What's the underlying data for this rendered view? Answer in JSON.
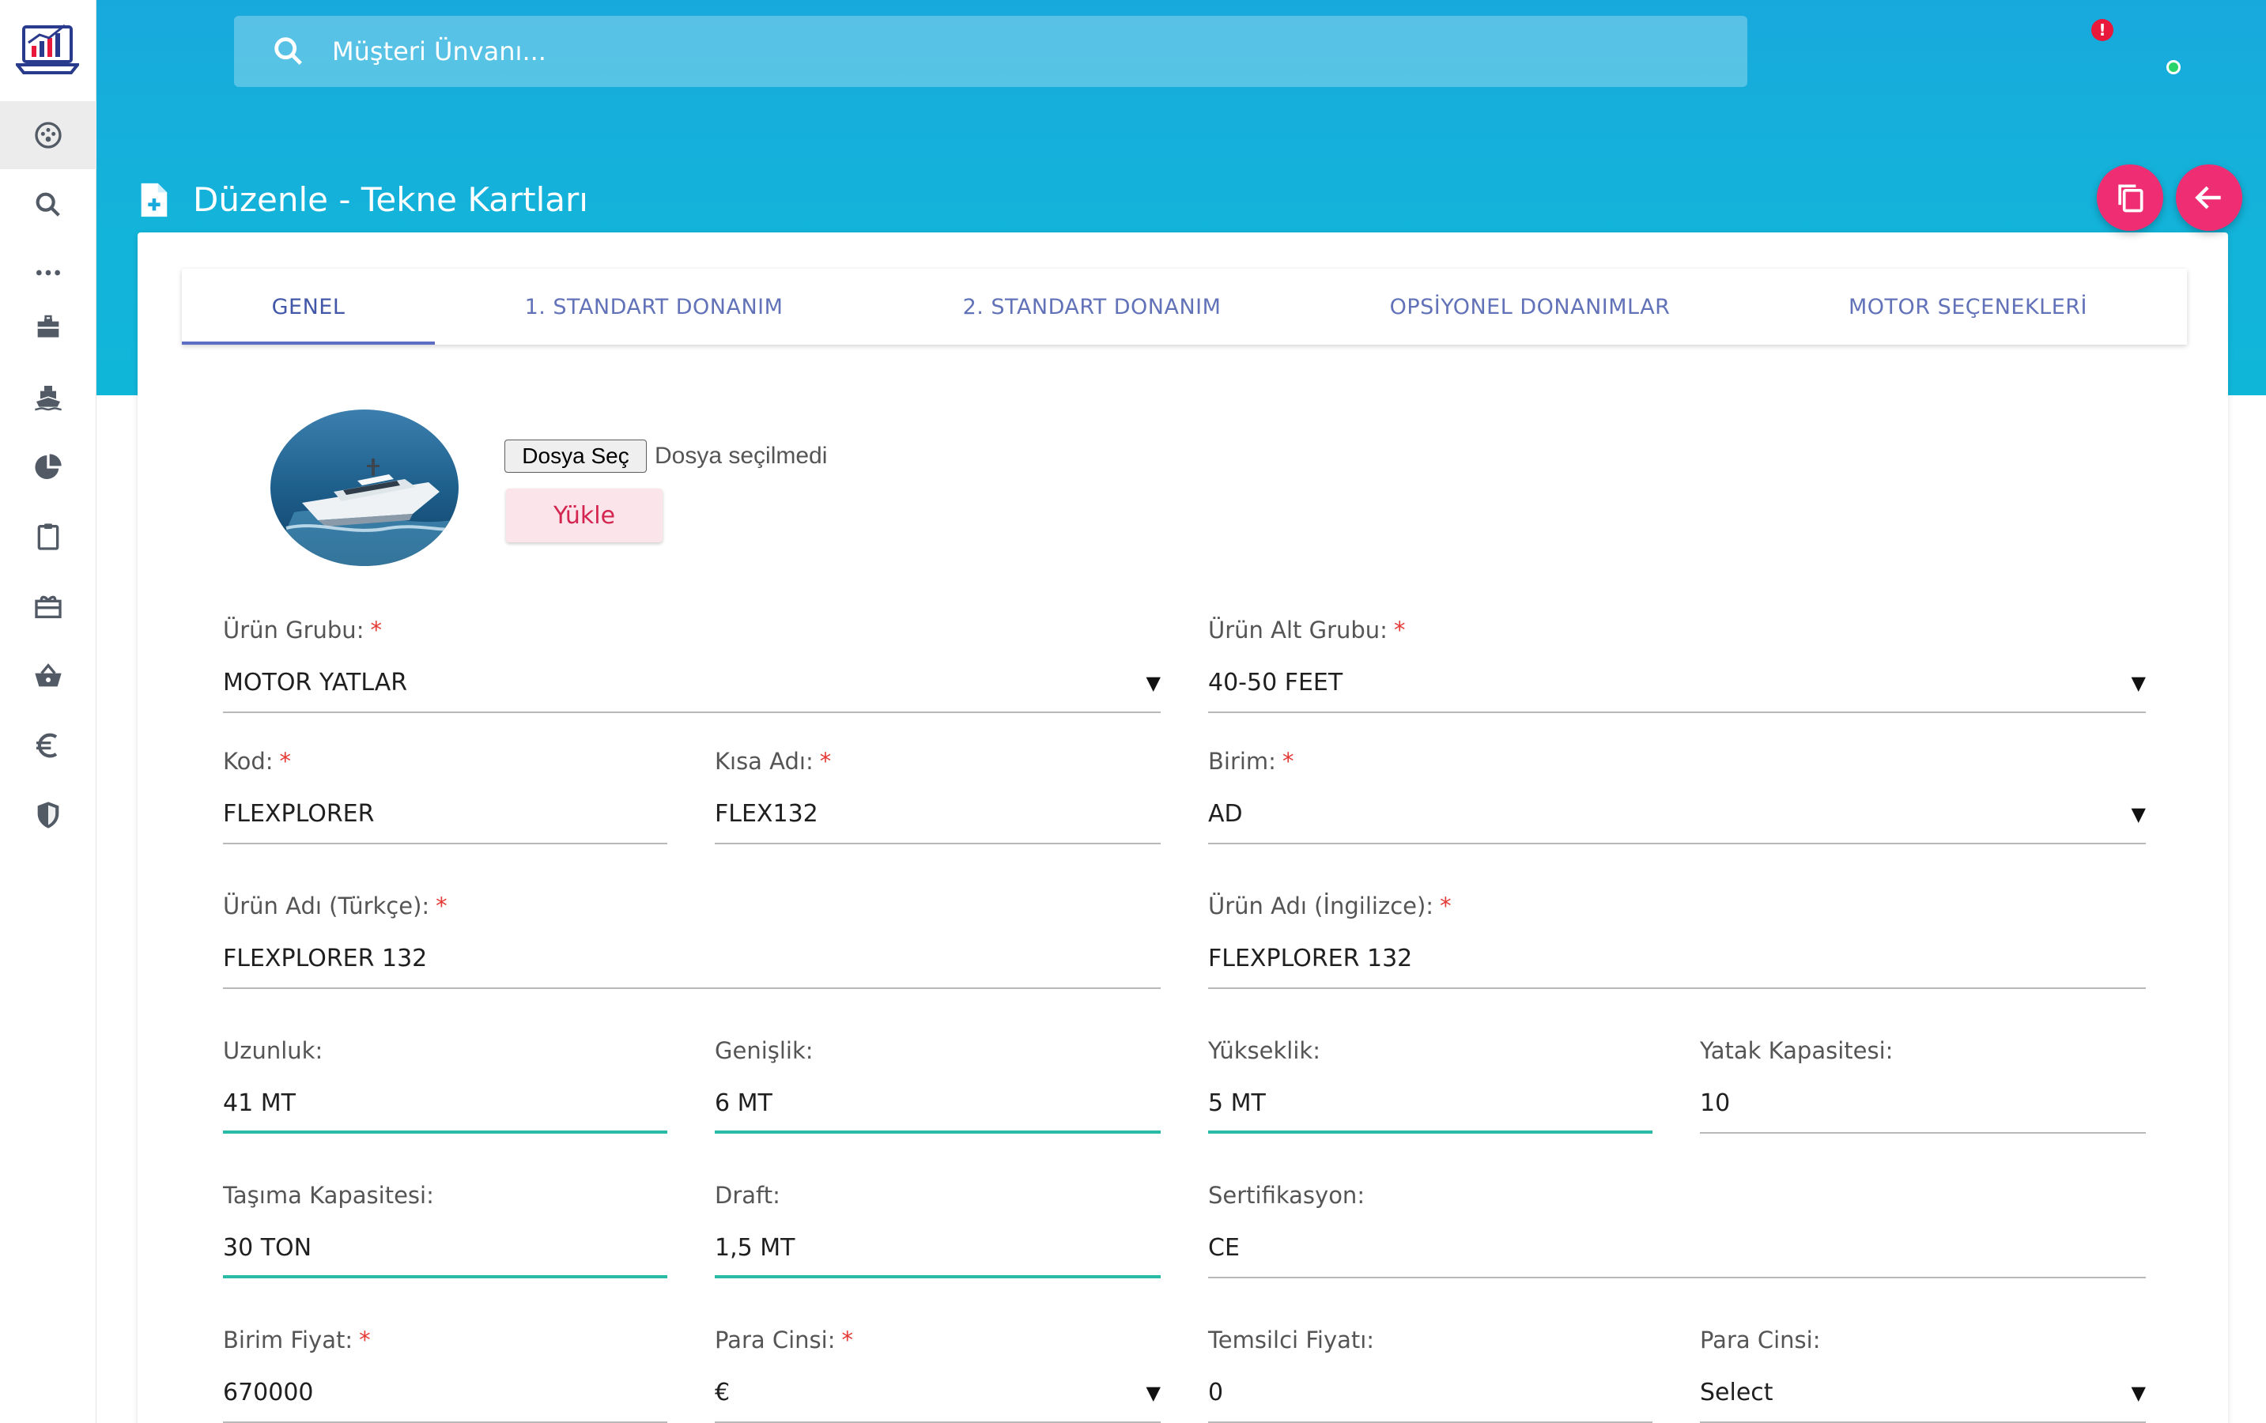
{
  "search": {
    "placeholder": "Müşteri Ünvanı..."
  },
  "header": {
    "notification_count": "!"
  },
  "page": {
    "title": "Düzenle - Tekne Kartları"
  },
  "sidebar": {
    "items": [
      {
        "icon": "dashboard-icon",
        "active": true
      },
      {
        "icon": "search-icon"
      },
      {
        "icon": "more-icon"
      },
      {
        "icon": "briefcase-icon"
      },
      {
        "icon": "ship-icon"
      },
      {
        "icon": "pie-chart-icon"
      },
      {
        "icon": "clipboard-icon"
      },
      {
        "icon": "gift-icon"
      },
      {
        "icon": "basket-icon"
      },
      {
        "icon": "euro-icon"
      },
      {
        "icon": "shield-icon"
      }
    ]
  },
  "tabs": [
    {
      "label": "GENEL",
      "active": true
    },
    {
      "label": "1. STANDART DONANIM"
    },
    {
      "label": "2. STANDART DONANIM"
    },
    {
      "label": "OPSİYONEL DONANIMLAR"
    },
    {
      "label": "MOTOR SEÇENEKLERİ"
    }
  ],
  "upload": {
    "choose_label": "Dosya Seç",
    "status": "Dosya seçilmedi",
    "upload_label": "Yükle"
  },
  "form": {
    "urun_grubu": {
      "label": "Ürün Grubu:",
      "value": "MOTOR YATLAR",
      "required": "*"
    },
    "urun_alt_grubu": {
      "label": "Ürün Alt Grubu:",
      "value": "40-50 FEET",
      "required": "*"
    },
    "kod": {
      "label": "Kod:",
      "value": "FLEXPLORER",
      "required": "*"
    },
    "kisa_adi": {
      "label": "Kısa Adı:",
      "value": "FLEX132",
      "required": "*"
    },
    "birim": {
      "label": "Birim:",
      "value": "AD",
      "required": "*"
    },
    "urun_adi_tr": {
      "label": "Ürün Adı (Türkçe):",
      "value": "FLEXPLORER 132",
      "required": "*"
    },
    "urun_adi_en": {
      "label": "Ürün Adı (İngilizce):",
      "value": "FLEXPLORER 132",
      "required": "*"
    },
    "uzunluk": {
      "label": "Uzunluk:",
      "value": "41 MT"
    },
    "genislik": {
      "label": "Genişlik:",
      "value": "6 MT"
    },
    "yukseklik": {
      "label": "Yükseklik:",
      "value": "5 MT"
    },
    "yatak": {
      "label": "Yatak Kapasitesi:",
      "value": "10"
    },
    "tasima": {
      "label": "Taşıma Kapasitesi:",
      "value": "30 TON"
    },
    "draft": {
      "label": "Draft:",
      "value": "1,5 MT"
    },
    "sertifikasyon": {
      "label": "Sertifikasyon:",
      "value": "CE"
    },
    "birim_fiyat": {
      "label": "Birim Fiyat:",
      "value": "670000",
      "required": "*"
    },
    "para_cinsi": {
      "label": "Para Cinsi:",
      "value": "€",
      "required": "*"
    },
    "temsilci_fiyati": {
      "label": "Temsilci Fiyatı:",
      "value": "0"
    },
    "para_cinsi_2": {
      "label": "Para Cinsi:",
      "value": "Select"
    }
  },
  "dropdown_glyph": "▼",
  "colors": {
    "accent": "#ef2d72",
    "header": "#13b4da",
    "focus_line": "#28bca6",
    "tab": "#6172b8"
  }
}
